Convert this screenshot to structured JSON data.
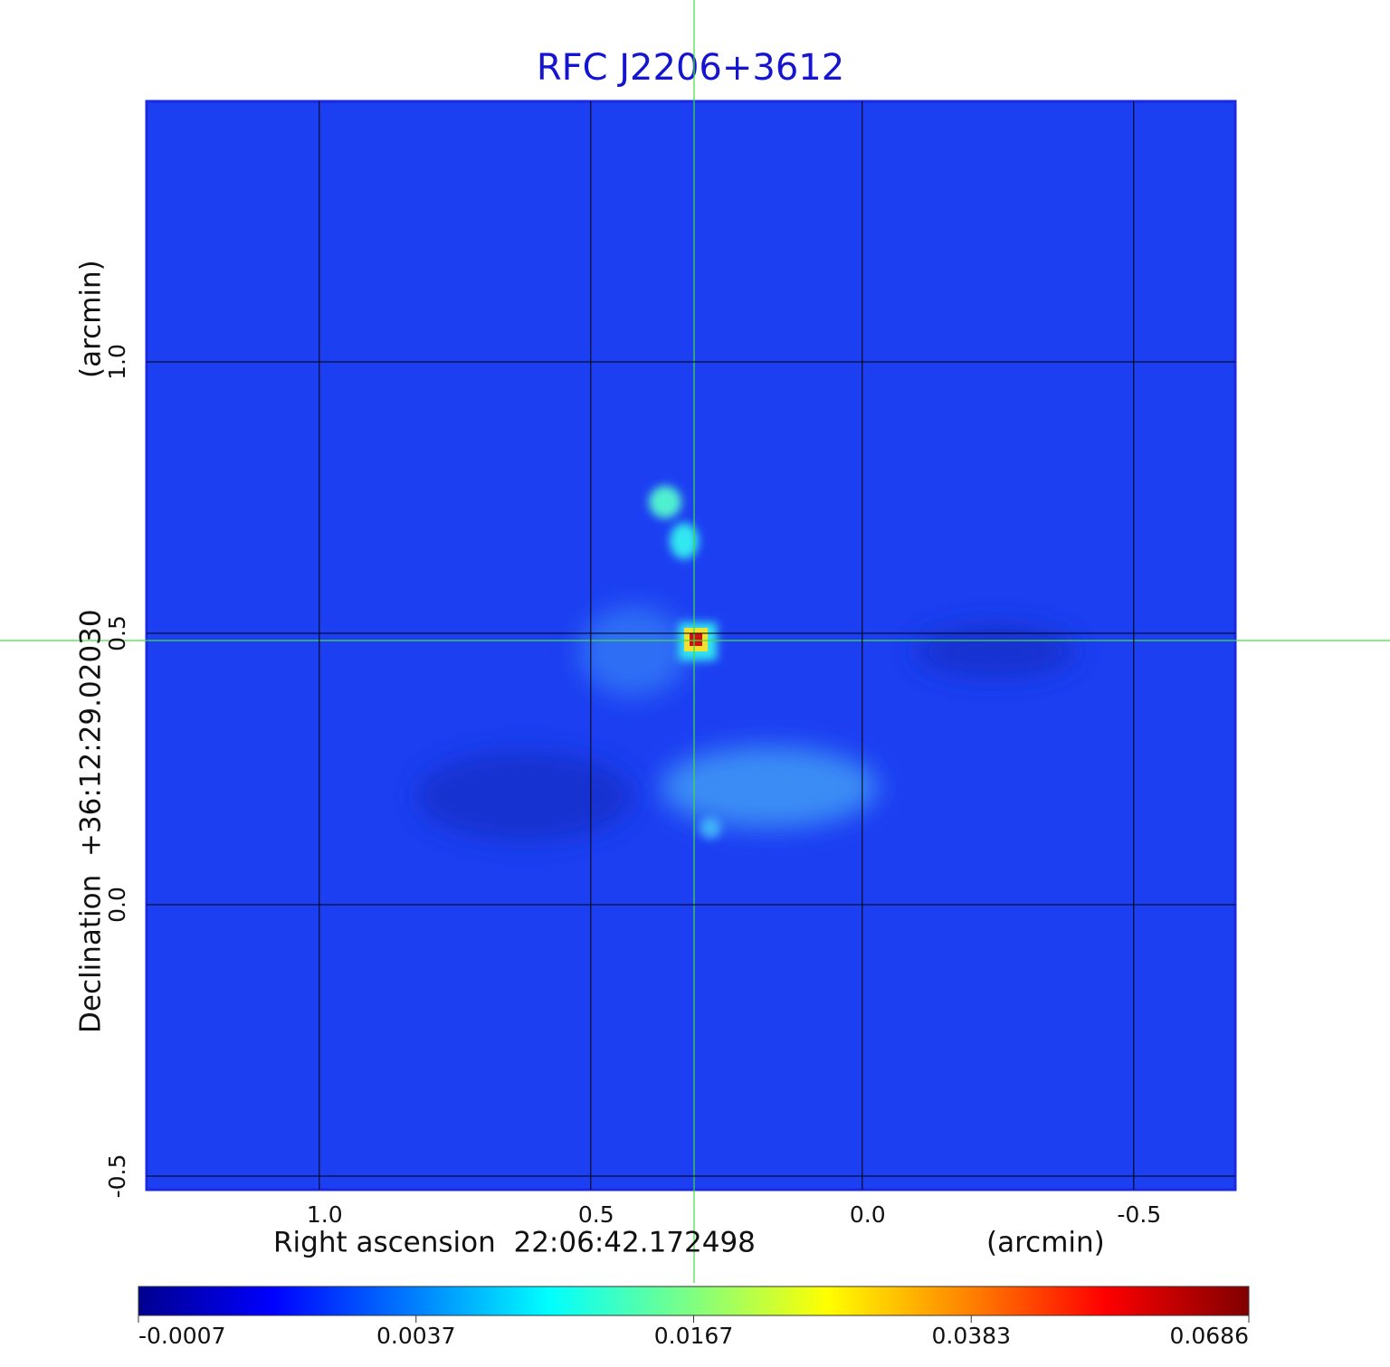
{
  "chart_data": {
    "type": "image",
    "title": "RFC J2206+3612",
    "x_label": "Right ascension  22:06:42.172498",
    "x_unit": "(arcmin)",
    "y_label": "Declination  +36:12:29.02030",
    "y_unit": "(arcmin)",
    "xlim": [
      1.318,
      -0.687
    ],
    "xticks": [
      {
        "value": 1,
        "label": "1.0"
      },
      0.5,
      {
        "value": 0,
        "label": "0.0"
      },
      -0.5
    ],
    "ylim": [
      -0.525,
      1.48
    ],
    "yticks": [
      -0.5,
      {
        "value": 0,
        "label": "0.0"
      },
      0.5,
      {
        "value": 1,
        "label": "1.0"
      }
    ],
    "grid": true,
    "colorbar": {
      "ticks": [
        -0.0007,
        0.0037,
        0.0167,
        0.0383,
        0.0686
      ]
    }
  }
}
